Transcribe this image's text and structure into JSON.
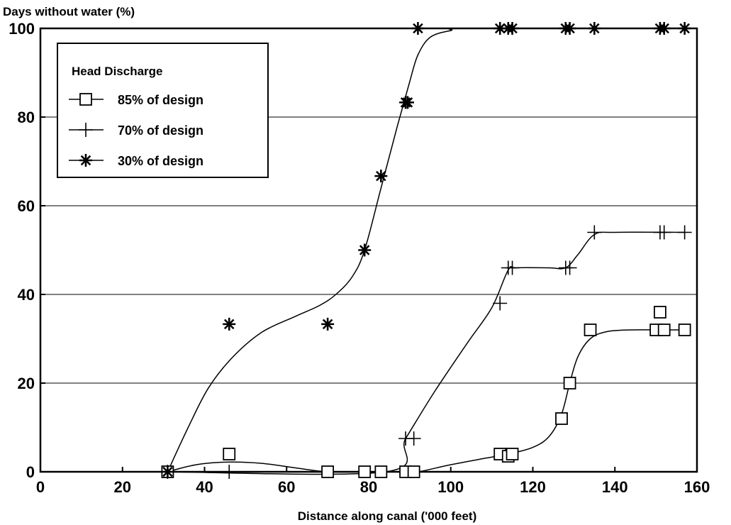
{
  "chart_data": {
    "type": "scatter",
    "ylabel": "Days without water (%)",
    "xlabel": "Distance along canal ('000 feet)",
    "xlim": [
      0,
      160
    ],
    "ylim": [
      0,
      100
    ],
    "x_ticks": [
      0,
      20,
      40,
      60,
      80,
      100,
      120,
      140,
      160
    ],
    "y_ticks": [
      0,
      20,
      40,
      60,
      80,
      100
    ],
    "grid": "horizontal",
    "legend": {
      "title": "Head Discharge",
      "placement": "top-left",
      "entries": [
        "85% of design",
        "70% of design",
        "30% of design"
      ]
    },
    "series": [
      {
        "name": "85% of design",
        "marker": "square",
        "points": [
          [
            31,
            0
          ],
          [
            46,
            4
          ],
          [
            70,
            0
          ],
          [
            79,
            0
          ],
          [
            83,
            0
          ],
          [
            89,
            0
          ],
          [
            91,
            0
          ],
          [
            112,
            4
          ],
          [
            114,
            3.5
          ],
          [
            115,
            4
          ],
          [
            127,
            12
          ],
          [
            129,
            20
          ],
          [
            134,
            32
          ],
          [
            150,
            32
          ],
          [
            151,
            36
          ],
          [
            152,
            32
          ],
          [
            157,
            32
          ]
        ],
        "curve": [
          [
            31,
            0
          ],
          [
            38,
            1.6
          ],
          [
            46,
            2.2
          ],
          [
            54,
            1.9
          ],
          [
            62,
            0.9
          ],
          [
            70,
            0
          ],
          [
            80,
            0
          ],
          [
            88,
            0
          ],
          [
            92,
            0
          ],
          [
            100,
            1.6
          ],
          [
            108,
            3
          ],
          [
            114,
            4
          ],
          [
            120,
            5.5
          ],
          [
            124,
            8
          ],
          [
            127,
            13
          ],
          [
            129,
            20
          ],
          [
            131,
            26
          ],
          [
            134,
            30
          ],
          [
            138,
            31.6
          ],
          [
            144,
            32
          ],
          [
            150,
            32
          ],
          [
            157,
            32
          ]
        ]
      },
      {
        "name": "70% of design",
        "marker": "plus",
        "points": [
          [
            31,
            0
          ],
          [
            46,
            0
          ],
          [
            89,
            7.5
          ],
          [
            91,
            7.5
          ],
          [
            112,
            38
          ],
          [
            114,
            46
          ],
          [
            115,
            46
          ],
          [
            128,
            46
          ],
          [
            129,
            46
          ],
          [
            135,
            54
          ],
          [
            151,
            54
          ],
          [
            152,
            54
          ],
          [
            157,
            54
          ]
        ],
        "curve": [
          [
            31,
            0
          ],
          [
            84,
            0
          ],
          [
            89,
            7.5
          ],
          [
            96,
            18
          ],
          [
            104,
            29
          ],
          [
            110,
            37
          ],
          [
            114,
            45.5
          ],
          [
            116,
            46
          ],
          [
            124,
            46
          ],
          [
            128,
            46
          ],
          [
            131,
            49
          ],
          [
            135,
            53.5
          ],
          [
            140,
            54
          ],
          [
            157,
            54
          ]
        ]
      },
      {
        "name": "30% of design",
        "marker": "asterisk",
        "points": [
          [
            31,
            0
          ],
          [
            46,
            33.3
          ],
          [
            70,
            33.3
          ],
          [
            79,
            50
          ],
          [
            83,
            66.7
          ],
          [
            89,
            83.3
          ],
          [
            89.5,
            83.3
          ],
          [
            92,
            100
          ],
          [
            112,
            100
          ],
          [
            114,
            100
          ],
          [
            115,
            100
          ],
          [
            128,
            100
          ],
          [
            129,
            100
          ],
          [
            135,
            100
          ],
          [
            151,
            100
          ],
          [
            152,
            100
          ],
          [
            157,
            100
          ]
        ],
        "curve": [
          [
            31,
            0
          ],
          [
            36,
            10
          ],
          [
            41,
            19
          ],
          [
            47,
            26
          ],
          [
            54,
            31.5
          ],
          [
            62,
            35
          ],
          [
            68,
            37.5
          ],
          [
            72,
            40
          ],
          [
            76,
            44
          ],
          [
            79,
            50
          ],
          [
            83,
            64
          ],
          [
            87,
            78
          ],
          [
            90,
            88
          ],
          [
            92,
            94
          ],
          [
            95,
            98
          ],
          [
            100,
            99.5
          ],
          [
            105,
            100
          ],
          [
            157,
            100
          ]
        ]
      }
    ]
  }
}
